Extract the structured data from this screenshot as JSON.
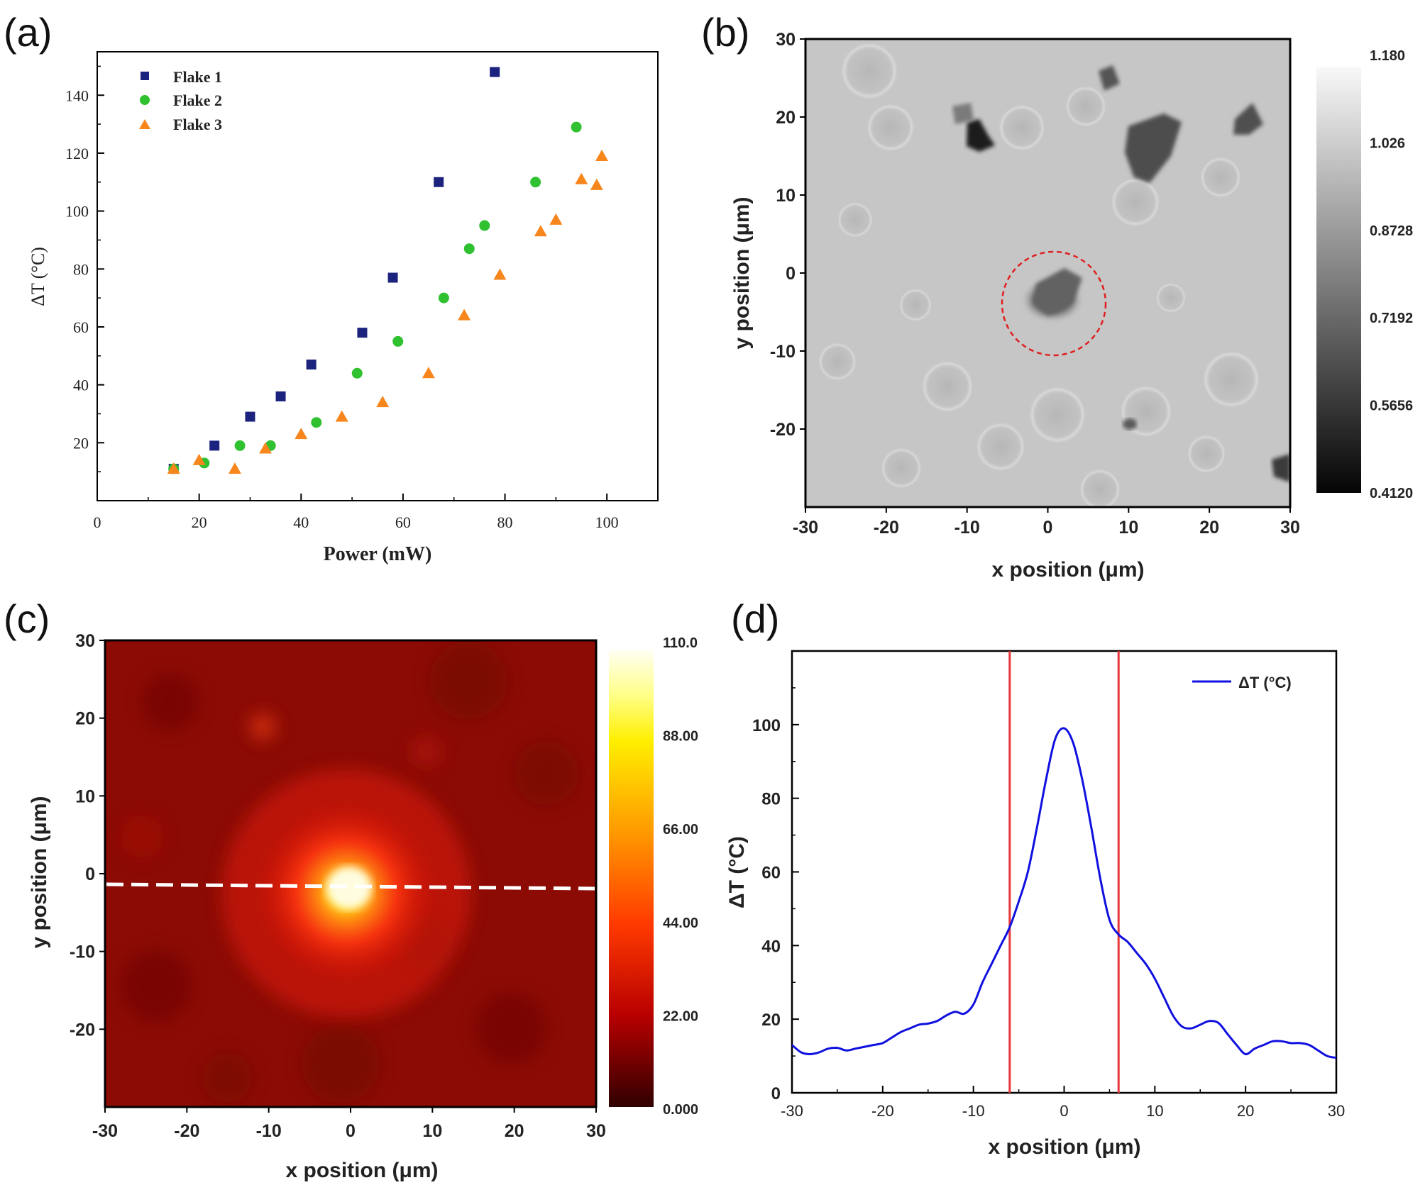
{
  "panel_labels": [
    "(a)",
    "(b)",
    "(c)",
    "(d)"
  ],
  "colors": {
    "flake1": "#1b237e",
    "flake2": "#2fc12f",
    "flake3": "#f7861d",
    "profile": "#1010e0",
    "guide_lines": "#e8353a",
    "circle": "#e02020"
  },
  "chart_data": [
    {
      "panel": "(a)",
      "type": "scatter",
      "xlabel": "Power (mW)",
      "ylabel": "ΔT (°C)",
      "xlim": [
        0,
        110
      ],
      "ylim": [
        0,
        155
      ],
      "x_ticks": [
        "0",
        "20",
        "40",
        "60",
        "80",
        "100"
      ],
      "y_ticks": [
        "20",
        "40",
        "60",
        "80",
        "100",
        "120",
        "140"
      ],
      "legend_position": "top-left",
      "series": [
        {
          "name": "Flake 1",
          "marker": "square",
          "color": "#1b237e",
          "x": [
            15,
            23,
            30,
            36,
            42,
            52,
            58,
            67,
            78
          ],
          "y": [
            11,
            19,
            29,
            36,
            47,
            58,
            77,
            110,
            148
          ]
        },
        {
          "name": "Flake 2",
          "marker": "circle",
          "color": "#2fc12f",
          "x": [
            15,
            21,
            28,
            34,
            43,
            51,
            59,
            68,
            73,
            76,
            86,
            94
          ],
          "y": [
            11,
            13,
            19,
            19,
            27,
            44,
            55,
            70,
            87,
            95,
            110,
            129
          ]
        },
        {
          "name": "Flake 3",
          "marker": "triangle",
          "color": "#f7861d",
          "x": [
            15,
            20,
            27,
            33,
            40,
            48,
            56,
            65,
            72,
            79,
            87,
            90,
            95,
            98,
            99
          ],
          "y": [
            11,
            14,
            11,
            18,
            23,
            29,
            34,
            44,
            64,
            78,
            93,
            97,
            111,
            109,
            119
          ]
        }
      ]
    },
    {
      "panel": "(b)",
      "type": "heatmap",
      "colormap": "grayscale",
      "xlabel": "x position (μm)",
      "ylabel": "y position (μm)",
      "xlim": [
        -30,
        30
      ],
      "ylim": [
        -30,
        30
      ],
      "x_ticks": [
        "-30",
        "-20",
        "-10",
        "0",
        "10",
        "20",
        "30"
      ],
      "y_ticks": [
        "30",
        "20",
        "10",
        "0",
        "-10",
        "-20"
      ],
      "colorbar_ticks": [
        "1.180",
        "1.026",
        "0.8728",
        "0.7192",
        "0.5656",
        "0.4120"
      ],
      "colorbar_range": [
        0.412,
        1.18
      ],
      "annotation": {
        "shape": "dashed circle",
        "center": [
          0.5,
          -1.5
        ],
        "radius": 6.5
      }
    },
    {
      "panel": "(c)",
      "type": "heatmap",
      "colormap": "hot",
      "xlabel": "x position (μm)",
      "ylabel": "y position (μm)",
      "xlim": [
        -30,
        30
      ],
      "ylim": [
        -30,
        30
      ],
      "x_ticks": [
        "-30",
        "-20",
        "-10",
        "0",
        "10",
        "20",
        "30"
      ],
      "y_ticks": [
        "30",
        "20",
        "10",
        "0",
        "-10",
        "-20"
      ],
      "colorbar_ticks": [
        "110.0",
        "88.00",
        "66.00",
        "44.00",
        "22.00",
        "0.000"
      ],
      "colorbar_range": [
        0,
        110
      ],
      "hotspot_center": [
        0,
        -1
      ],
      "line_cut": {
        "style": "white dashed",
        "y_left": -1.2,
        "y_right": -1.6
      }
    },
    {
      "panel": "(d)",
      "type": "line",
      "xlabel": "x position (μm)",
      "ylabel": "ΔT (°C)",
      "xlim": [
        -30,
        30
      ],
      "ylim": [
        0,
        120
      ],
      "x_ticks": [
        "-30",
        "-20",
        "-10",
        "0",
        "10",
        "20",
        "30"
      ],
      "y_ticks": [
        "0",
        "20",
        "40",
        "60",
        "80",
        "100"
      ],
      "legend_position": "top-right",
      "vertical_lines_x": [
        -6,
        6
      ],
      "series": [
        {
          "name": "ΔT (°C)",
          "color": "#1010e0",
          "x": [
            -30,
            -29,
            -28,
            -27,
            -26,
            -25,
            -24,
            -23,
            -22,
            -21,
            -20,
            -19,
            -18,
            -17,
            -16,
            -15,
            -14,
            -13,
            -12,
            -11,
            -10,
            -9,
            -8,
            -7,
            -6,
            -5,
            -4,
            -3,
            -2,
            -1,
            0,
            1,
            2,
            3,
            4,
            5,
            6,
            7,
            8,
            9,
            10,
            11,
            12,
            13,
            14,
            15,
            16,
            17,
            18,
            19,
            20,
            21,
            22,
            23,
            24,
            25,
            26,
            27,
            28,
            29,
            30
          ],
          "y": [
            13,
            11,
            10.5,
            11,
            12,
            12.2,
            11.5,
            12,
            12.5,
            13,
            13.5,
            15,
            16.5,
            17.5,
            18.5,
            18.8,
            19.5,
            21,
            22,
            21.5,
            24,
            30,
            35,
            40,
            45,
            52,
            60,
            72,
            85,
            96,
            99,
            95,
            85,
            72,
            58,
            47,
            43,
            41,
            38,
            35,
            31,
            26,
            21,
            18,
            17.5,
            18.5,
            19.5,
            19,
            16,
            13,
            10.5,
            12,
            13,
            14,
            14,
            13.5,
            13.5,
            13,
            11.5,
            10,
            9.5
          ]
        }
      ]
    }
  ]
}
